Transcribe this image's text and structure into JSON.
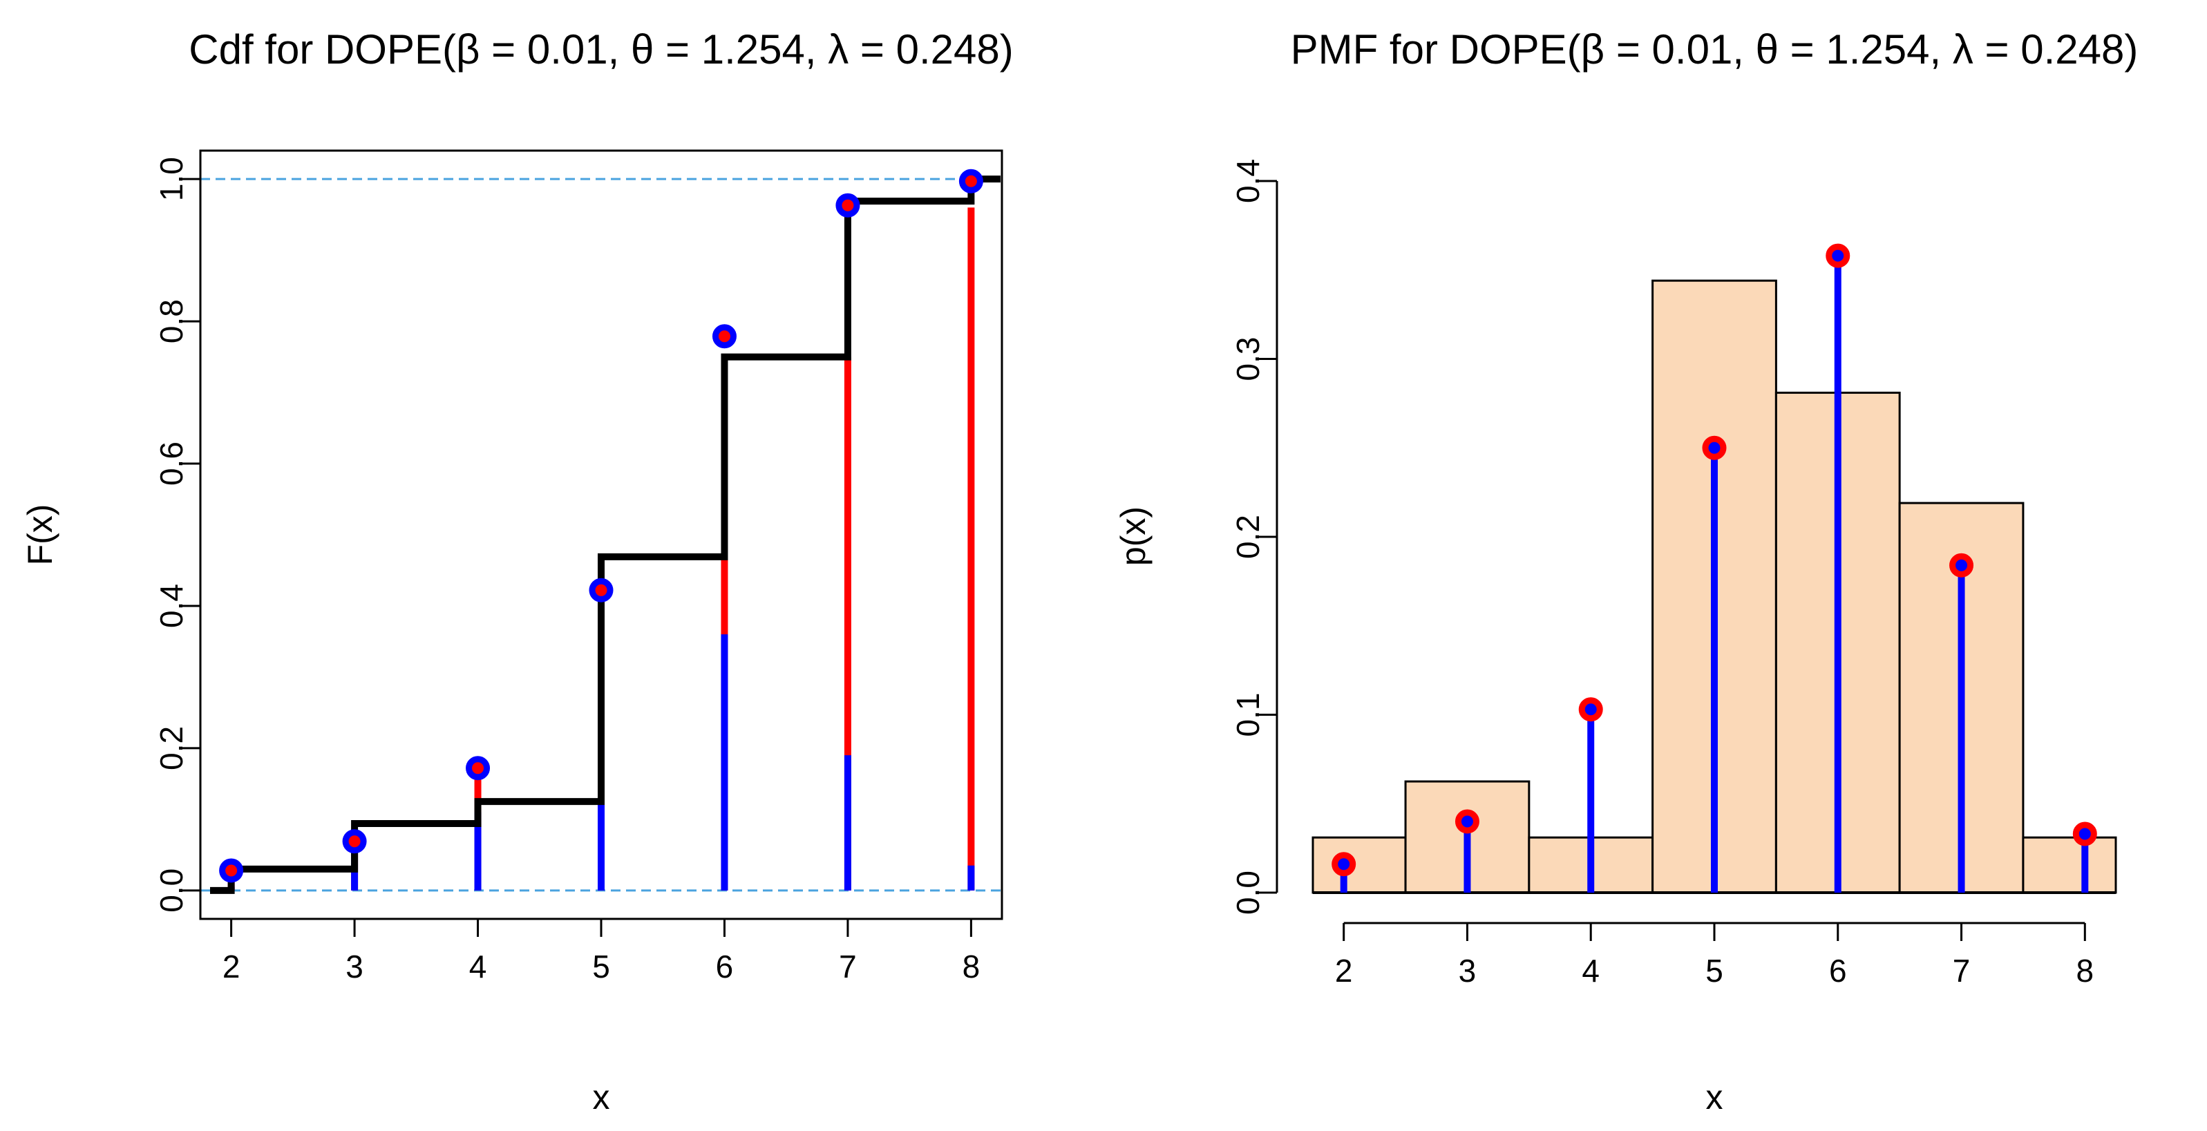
{
  "colors": {
    "stair": "#000000",
    "red": "#ff0000",
    "blue": "#0000ff",
    "ref_line": "#4aa3df",
    "hist_fill": "#fbd9b8",
    "hist_border": "#000000"
  },
  "chart_data": [
    {
      "type": "line",
      "subtype": "step-cdf",
      "title": "Cdf for DOPE(β = 0.01, θ = 1.254, λ = 0.248)",
      "title_prefix": "Cdf for DOPE",
      "params": [
        {
          "sym": "β",
          "value": "0.01"
        },
        {
          "sym": "θ",
          "value": "1.254"
        },
        {
          "sym": "λ",
          "value": "0.248"
        }
      ],
      "xlabel": "x",
      "ylabel": "F(x)",
      "xlim": [
        1.75,
        8.25
      ],
      "ylim": [
        -0.04,
        1.04
      ],
      "x_ticks": [
        2,
        3,
        4,
        5,
        6,
        7,
        8
      ],
      "x_tick_labels": [
        "2",
        "3",
        "4",
        "5",
        "6",
        "7",
        "8"
      ],
      "y_ticks": [
        0,
        0.2,
        0.4,
        0.6,
        0.8,
        1.0
      ],
      "y_tick_labels": [
        "0.0",
        "0.2",
        "0.4",
        "0.6",
        "0.8",
        "1.0"
      ],
      "reference_lines": [
        0,
        1
      ],
      "x": [
        2,
        3,
        4,
        5,
        6,
        7,
        8
      ],
      "theoretical_cdf": [
        0.03,
        0.094,
        0.125,
        0.469,
        0.75,
        0.969,
        1.0
      ],
      "points": [
        0.028,
        0.069,
        0.172,
        0.422,
        0.779,
        0.963,
        0.997
      ],
      "blue_segment_top": [
        0.005,
        0.06,
        0.11,
        0.255,
        0.36,
        0.19,
        0.035
      ],
      "red_segment_top": [
        0.012,
        0.065,
        0.165,
        0.415,
        0.465,
        0.75,
        0.96
      ]
    },
    {
      "type": "bar",
      "subtype": "histogram-with-pmf",
      "title": "PMF for DOPE(β = 0.01, θ = 1.254, λ = 0.248)",
      "title_prefix": "PMF for DOPE",
      "params": [
        {
          "sym": "β",
          "value": "0.01"
        },
        {
          "sym": "θ",
          "value": "1.254"
        },
        {
          "sym": "λ",
          "value": "0.248"
        }
      ],
      "xlabel": "x",
      "ylabel": "p(x)",
      "xlim": [
        1.75,
        8.25
      ],
      "ylim": [
        0,
        0.4
      ],
      "x_ticks": [
        2,
        3,
        4,
        5,
        6,
        7,
        8
      ],
      "x_tick_labels": [
        "2",
        "3",
        "4",
        "5",
        "6",
        "7",
        "8"
      ],
      "y_ticks": [
        0,
        0.1,
        0.2,
        0.3,
        0.4
      ],
      "y_tick_labels": [
        "0.0",
        "0.1",
        "0.2",
        "0.3",
        "0.4"
      ],
      "bins": [
        {
          "from": 1.5,
          "to": 2.5,
          "value": 0.031
        },
        {
          "from": 2.5,
          "to": 3.5,
          "value": 0.0625
        },
        {
          "from": 3.5,
          "to": 4.5,
          "value": 0.031
        },
        {
          "from": 4.5,
          "to": 5.5,
          "value": 0.344
        },
        {
          "from": 5.5,
          "to": 6.5,
          "value": 0.281
        },
        {
          "from": 6.5,
          "to": 7.5,
          "value": 0.219
        },
        {
          "from": 7.5,
          "to": 8.5,
          "value": 0.031
        }
      ],
      "x": [
        2,
        3,
        4,
        5,
        6,
        7,
        8
      ],
      "pmf": [
        0.016,
        0.04,
        0.103,
        0.25,
        0.358,
        0.184,
        0.033
      ]
    }
  ]
}
